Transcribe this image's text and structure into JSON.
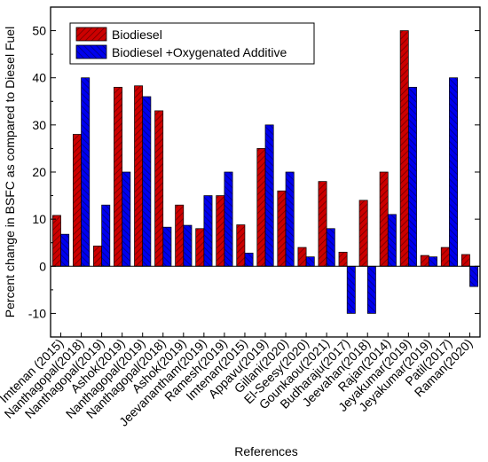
{
  "chart_data": {
    "type": "bar",
    "xlabel": "References",
    "ylabel": "Percent change in BSFC as compared to Diesel Fuel",
    "ylim": [
      -15,
      55
    ],
    "yticks": [
      -10,
      0,
      10,
      20,
      30,
      40,
      50
    ],
    "legend": "top-left",
    "categories": [
      "Imtenan (2015)",
      "Nanthagopal(2018)",
      "Nanthagopal(2019)",
      "Ashok(2019)",
      "Nanthagopal(2019)",
      "Nanthagopal(2018)",
      "Ashok(2019)",
      "Jeevanantham(2019)",
      "Ramesh(2019)",
      "Imtenan(2015)",
      "Appavu(2019)",
      "Gillani(2020)",
      "El-Seesy(2020)",
      "Gounkaou(2021)",
      "Budharaju(2017)",
      "Jeevahan(2018)",
      "Rajan(2014)",
      "Jeyakumar(2019)",
      "Jeyakumar(2019)",
      "Patil(2017)",
      "Raman(2020)"
    ],
    "series": [
      {
        "name": "Biodiesel",
        "color": "#cc0000",
        "values": [
          10.8,
          28,
          4.3,
          38,
          38.3,
          33,
          13,
          8,
          15,
          8.8,
          25,
          16,
          4,
          18,
          3,
          14,
          20,
          50,
          2.3,
          4,
          2.5
        ]
      },
      {
        "name": "Biodiesel +Oxygenated Additive",
        "color": "#0000ee",
        "values": [
          6.8,
          40,
          13,
          20,
          36,
          8.3,
          8.7,
          15,
          20,
          2.8,
          30,
          20,
          2,
          8,
          -10,
          -10,
          11,
          38,
          2,
          40,
          -4.3
        ]
      }
    ]
  }
}
